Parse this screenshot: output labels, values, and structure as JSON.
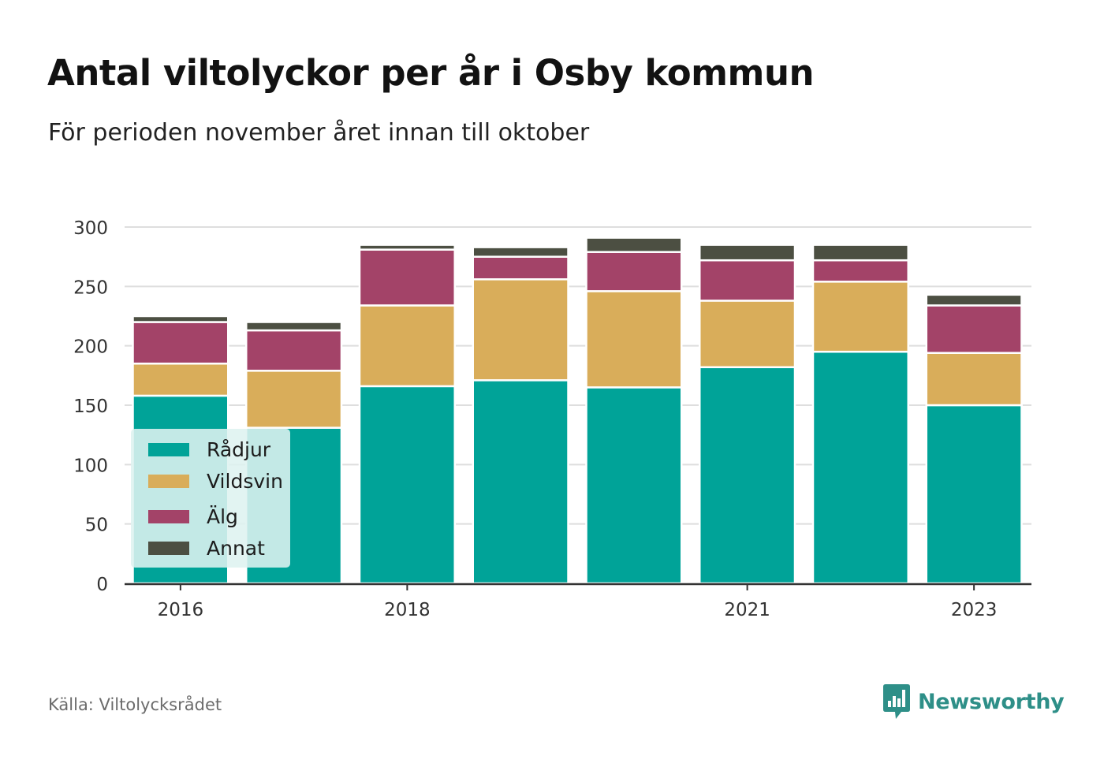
{
  "header": {
    "title": "Antal viltolyckor per år i Osby kommun",
    "subtitle": "För perioden november året innan till oktober"
  },
  "footer": {
    "source": "Källa: Viltolycksrådet",
    "brand": "Newsworthy",
    "brand_color": "#2e8f88"
  },
  "chart_data": {
    "type": "bar",
    "stacked": true,
    "categories": [
      "2016",
      "2017",
      "2018",
      "2019",
      "2020",
      "2021",
      "2022",
      "2023"
    ],
    "x_tick_labels": [
      "2016",
      "2018",
      "2021",
      "2023"
    ],
    "y_ticks": [
      0,
      50,
      100,
      150,
      200,
      250,
      300
    ],
    "ylim": [
      0,
      300
    ],
    "grid": true,
    "legend_position": "bottom-left, inside plot",
    "series": [
      {
        "name": "Rådjur",
        "color": "#00a398",
        "values": [
          158,
          131,
          166,
          171,
          165,
          182,
          195,
          150
        ]
      },
      {
        "name": "Vildsvin",
        "color": "#d9ad5a",
        "values": [
          27,
          48,
          68,
          85,
          81,
          56,
          59,
          44
        ]
      },
      {
        "name": "Älg",
        "color": "#a34368",
        "values": [
          35,
          34,
          47,
          19,
          33,
          34,
          18,
          40
        ]
      },
      {
        "name": "Annat",
        "color": "#4c4f42",
        "values": [
          5,
          7,
          4,
          8,
          12,
          13,
          13,
          9
        ]
      }
    ]
  }
}
